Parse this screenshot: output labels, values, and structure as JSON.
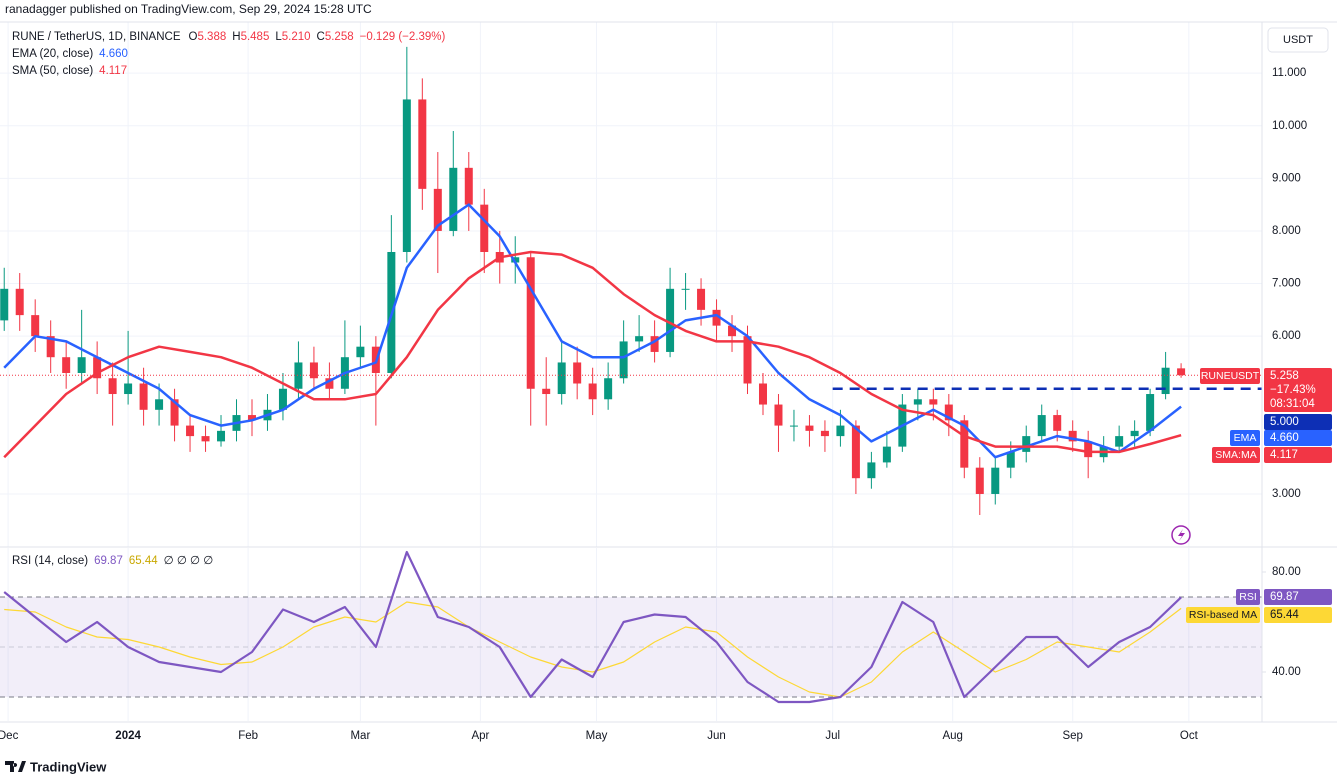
{
  "header": {
    "published": "ranadagger published on TradingView.com, Sep 29, 2024 15:28 UTC",
    "logo": "TradingView"
  },
  "chart_data": [
    {
      "type": "candlestick",
      "title": "RUNE / TetherUS, 1D, BINANCE",
      "ohlc_legend": [
        {
          "label": "O",
          "value": "5.388"
        },
        {
          "label": "H",
          "value": "5.485"
        },
        {
          "label": "L",
          "value": "5.210"
        },
        {
          "label": "C",
          "value": "5.258"
        }
      ],
      "change": "−0.129 (−2.39%)",
      "symbol": "RUNEUSDT",
      "change_percent": "−17.43%",
      "countdown": "08:31:04",
      "currency": "USDT",
      "up_color": "#089981",
      "down_color": "#f23645",
      "x": [
        -32,
        -28,
        -24,
        -20,
        -16,
        -12,
        -8,
        -4,
        0,
        4,
        8,
        12,
        16,
        20,
        24,
        28,
        32,
        36,
        40,
        44,
        48,
        52,
        56,
        60,
        64,
        68,
        72,
        76,
        80,
        84,
        88,
        92,
        96,
        100,
        104,
        108,
        112,
        116,
        120,
        124,
        128,
        132,
        136,
        140,
        144,
        148,
        152,
        156,
        160,
        164,
        168,
        172,
        176,
        180,
        184,
        188,
        192,
        196,
        200,
        204,
        208,
        212,
        216,
        220,
        224,
        228,
        232,
        236,
        240,
        244,
        248,
        252,
        256,
        260,
        264,
        268,
        272
      ],
      "open": [
        6.3,
        6.9,
        6.4,
        6.0,
        5.6,
        5.3,
        5.6,
        5.2,
        4.9,
        5.1,
        4.6,
        4.8,
        4.3,
        4.1,
        4.0,
        4.2,
        4.5,
        4.4,
        4.6,
        5.0,
        5.5,
        5.2,
        5.0,
        5.6,
        5.8,
        5.3,
        7.6,
        10.5,
        8.8,
        8.0,
        9.2,
        8.5,
        7.6,
        7.4,
        7.5,
        5.0,
        4.9,
        5.5,
        5.1,
        4.8,
        5.2,
        5.9,
        6.0,
        5.7,
        6.9,
        6.9,
        6.5,
        6.2,
        6.0,
        5.1,
        4.7,
        4.3,
        4.3,
        4.2,
        4.1,
        4.3,
        3.3,
        3.6,
        3.9,
        4.7,
        4.8,
        4.7,
        4.4,
        3.5,
        3.0,
        3.5,
        3.8,
        4.1,
        4.5,
        4.2,
        4.0,
        3.7,
        3.9,
        4.1,
        4.2,
        4.9,
        5.388
      ],
      "high": [
        7.3,
        7.2,
        6.7,
        6.3,
        5.9,
        6.5,
        5.9,
        5.5,
        6.1,
        5.4,
        5.1,
        5.0,
        4.5,
        4.3,
        4.5,
        4.8,
        4.8,
        4.9,
        5.3,
        5.9,
        5.8,
        5.5,
        6.3,
        6.2,
        6.0,
        8.3,
        11.5,
        10.9,
        9.5,
        9.9,
        9.5,
        8.8,
        8.0,
        7.9,
        7.6,
        5.6,
        5.9,
        5.8,
        5.4,
        5.5,
        6.3,
        6.4,
        6.3,
        7.3,
        7.2,
        7.1,
        6.7,
        6.4,
        6.2,
        5.3,
        4.9,
        4.6,
        4.5,
        4.4,
        4.6,
        4.4,
        3.8,
        4.2,
        4.9,
        5.0,
        5.0,
        4.9,
        4.5,
        3.7,
        3.7,
        4.0,
        4.3,
        4.7,
        4.6,
        4.4,
        4.2,
        4.1,
        4.3,
        4.4,
        5.0,
        5.7,
        5.485
      ],
      "low": [
        6.1,
        6.1,
        5.7,
        5.3,
        5.0,
        5.1,
        4.9,
        4.3,
        4.7,
        4.3,
        4.3,
        4.0,
        3.8,
        3.8,
        3.9,
        4.0,
        4.1,
        4.2,
        4.4,
        4.8,
        5.0,
        4.8,
        4.9,
        5.4,
        4.3,
        5.2,
        7.4,
        8.4,
        7.2,
        7.9,
        8.0,
        7.2,
        7.0,
        7.0,
        4.3,
        4.3,
        4.7,
        4.8,
        4.5,
        4.6,
        5.1,
        5.7,
        5.5,
        5.6,
        6.5,
        6.2,
        5.9,
        5.7,
        4.9,
        4.5,
        3.8,
        4.0,
        3.9,
        3.8,
        3.9,
        3.0,
        3.1,
        3.5,
        3.8,
        4.4,
        4.4,
        4.1,
        3.3,
        2.6,
        2.8,
        3.3,
        3.6,
        4.0,
        4.0,
        3.8,
        3.3,
        3.6,
        3.8,
        3.9,
        4.1,
        4.8,
        5.21
      ],
      "close": [
        6.9,
        6.4,
        6.0,
        5.6,
        5.3,
        5.6,
        5.2,
        4.9,
        5.1,
        4.6,
        4.8,
        4.3,
        4.1,
        4.0,
        4.2,
        4.5,
        4.4,
        4.6,
        5.0,
        5.5,
        5.2,
        5.0,
        5.6,
        5.8,
        5.3,
        7.6,
        10.5,
        8.8,
        8.0,
        9.2,
        8.5,
        7.6,
        7.4,
        7.5,
        5.0,
        4.9,
        5.5,
        5.1,
        4.8,
        5.2,
        5.9,
        6.0,
        5.7,
        6.9,
        6.9,
        6.5,
        6.2,
        6.0,
        5.1,
        4.7,
        4.3,
        4.3,
        4.2,
        4.1,
        4.3,
        3.3,
        3.6,
        3.9,
        4.7,
        4.8,
        4.7,
        4.4,
        3.5,
        3.0,
        3.5,
        3.8,
        4.1,
        4.5,
        4.2,
        4.0,
        3.7,
        3.9,
        4.1,
        4.2,
        4.9,
        5.4,
        5.258
      ],
      "line_x": [
        -32,
        -24,
        -16,
        -8,
        0,
        8,
        16,
        24,
        32,
        40,
        48,
        56,
        64,
        72,
        80,
        88,
        96,
        104,
        112,
        120,
        128,
        136,
        144,
        152,
        160,
        168,
        176,
        184,
        192,
        200,
        208,
        216,
        224,
        232,
        240,
        248,
        256,
        264,
        272
      ],
      "overlays": [
        {
          "name": "EMA (20, close)",
          "short_name": "EMA",
          "color": "#2962ff",
          "value_label": "4.660",
          "values": [
            5.4,
            6.0,
            5.9,
            5.6,
            5.3,
            5.0,
            4.5,
            4.3,
            4.4,
            4.6,
            5.0,
            5.3,
            5.5,
            7.3,
            8.1,
            8.5,
            7.9,
            6.9,
            5.9,
            5.6,
            5.6,
            5.9,
            6.3,
            6.4,
            6.0,
            5.3,
            4.8,
            4.5,
            4.0,
            4.3,
            4.6,
            4.3,
            3.7,
            3.9,
            4.1,
            4.0,
            3.8,
            4.2,
            4.66
          ]
        },
        {
          "name": "SMA (50, close)",
          "short_name": "SMA:MA",
          "color": "#f23645",
          "value_label": "4.117",
          "values": [
            3.7,
            4.3,
            4.9,
            5.3,
            5.6,
            5.8,
            5.7,
            5.6,
            5.4,
            5.1,
            4.8,
            4.8,
            4.9,
            5.6,
            6.5,
            7.1,
            7.5,
            7.6,
            7.55,
            7.3,
            6.8,
            6.4,
            6.1,
            5.9,
            5.9,
            5.8,
            5.6,
            5.3,
            4.9,
            4.6,
            4.5,
            4.1,
            3.9,
            3.9,
            3.9,
            3.8,
            3.8,
            3.95,
            4.117
          ]
        }
      ],
      "level": {
        "value": 5,
        "label": "5.000",
        "x_start": 182,
        "color": "#0d2fb5"
      },
      "xlim": [
        -31.8,
        292.9
      ],
      "ylim": [
        2.03,
        11.82
      ],
      "yticks": [
        {
          "value": 3,
          "label": "3.000"
        },
        {
          "value": 6,
          "label": "6.000"
        },
        {
          "value": 7,
          "label": "7.000"
        },
        {
          "value": 8,
          "label": "8.000"
        },
        {
          "value": 9,
          "label": "9.000"
        },
        {
          "value": 10,
          "label": "10.000"
        },
        {
          "value": 11,
          "label": "11.000"
        }
      ],
      "grid": true
    },
    {
      "type": "line",
      "title": "RSI (14, close)",
      "extra": "∅ ∅ ∅ ∅",
      "x": [
        -32,
        -24,
        -16,
        -8,
        0,
        8,
        16,
        24,
        32,
        40,
        48,
        56,
        64,
        72,
        80,
        88,
        96,
        104,
        112,
        120,
        128,
        136,
        144,
        152,
        160,
        168,
        176,
        184,
        192,
        200,
        208,
        216,
        224,
        232,
        240,
        248,
        256,
        264,
        272
      ],
      "series": [
        {
          "name": "RSI",
          "color": "#7e57c2",
          "values": [
            72,
            62,
            52,
            60,
            50,
            44,
            42,
            40,
            48,
            65,
            60,
            66,
            50,
            88,
            62,
            58,
            50,
            30,
            45,
            38,
            60,
            63,
            62,
            52,
            36,
            28,
            28,
            30,
            42,
            68,
            60,
            30,
            42,
            54,
            54,
            42,
            52,
            58,
            69.87
          ]
        },
        {
          "name": "RSI-based MA",
          "color": "#fdd835",
          "values": [
            65,
            64,
            58,
            54,
            53,
            50,
            46,
            43,
            44,
            50,
            58,
            62,
            60,
            68,
            66,
            58,
            52,
            46,
            42,
            40,
            44,
            52,
            58,
            56,
            46,
            38,
            32,
            30,
            36,
            48,
            56,
            48,
            40,
            45,
            52,
            50,
            48,
            56,
            65.44
          ]
        }
      ],
      "bands": [
        70,
        50,
        30
      ],
      "xlim": [
        -31.8,
        292.9
      ],
      "ylim": [
        20.8,
        89.6
      ],
      "yticks": [
        {
          "value": 80,
          "label": "80.00"
        },
        {
          "value": 40,
          "label": "40.00"
        }
      ],
      "xticks": [
        {
          "value": -31,
          "label": "Dec"
        },
        {
          "value": 0,
          "label": "2024"
        },
        {
          "value": 31,
          "label": "Feb"
        },
        {
          "value": 60,
          "label": "Mar"
        },
        {
          "value": 91,
          "label": "Apr"
        },
        {
          "value": 121,
          "label": "May"
        },
        {
          "value": 152,
          "label": "Jun"
        },
        {
          "value": 182,
          "label": "Jul"
        },
        {
          "value": 213,
          "label": "Aug"
        },
        {
          "value": 244,
          "label": "Sep"
        },
        {
          "value": 274,
          "label": "Oct"
        }
      ]
    }
  ]
}
